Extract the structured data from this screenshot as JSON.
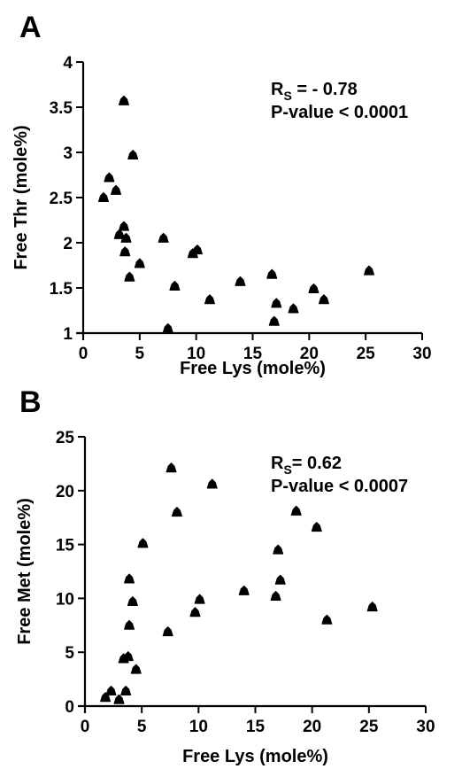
{
  "chart_data": [
    {
      "type": "scatter",
      "panel_label": "A",
      "xlabel": "Free Lys (mole%)",
      "ylabel": "Free Thr (mole%)",
      "xlim": [
        0,
        30
      ],
      "ylim": [
        1,
        4
      ],
      "xticks": [
        "0",
        "5",
        "10",
        "15",
        "20",
        "25",
        "30"
      ],
      "yticks": [
        "1",
        "1.5",
        "2",
        "2.5",
        "3",
        "3.5",
        "4"
      ],
      "annotation": {
        "rs_prefix": "R",
        "rs_sub": "S",
        "rs_value": " = - 0.78",
        "pvalue": "P-value < 0.0001"
      },
      "marker": "triangle",
      "color": "#000000",
      "grid": false,
      "points": [
        {
          "x": 1.8,
          "y": 2.5
        },
        {
          "x": 2.3,
          "y": 2.72
        },
        {
          "x": 2.9,
          "y": 2.58
        },
        {
          "x": 3.2,
          "y": 2.09
        },
        {
          "x": 3.6,
          "y": 3.57
        },
        {
          "x": 3.6,
          "y": 2.18
        },
        {
          "x": 3.7,
          "y": 1.9
        },
        {
          "x": 3.8,
          "y": 2.05
        },
        {
          "x": 4.1,
          "y": 1.62
        },
        {
          "x": 4.4,
          "y": 2.97
        },
        {
          "x": 5.0,
          "y": 1.77
        },
        {
          "x": 7.1,
          "y": 2.05
        },
        {
          "x": 7.5,
          "y": 1.05
        },
        {
          "x": 8.1,
          "y": 1.52
        },
        {
          "x": 9.7,
          "y": 1.88
        },
        {
          "x": 10.1,
          "y": 1.92
        },
        {
          "x": 11.2,
          "y": 1.37
        },
        {
          "x": 13.9,
          "y": 1.57
        },
        {
          "x": 16.7,
          "y": 1.65
        },
        {
          "x": 16.9,
          "y": 1.13
        },
        {
          "x": 17.1,
          "y": 1.33
        },
        {
          "x": 18.6,
          "y": 1.27
        },
        {
          "x": 20.4,
          "y": 1.49
        },
        {
          "x": 21.3,
          "y": 1.37
        },
        {
          "x": 25.3,
          "y": 1.69
        }
      ]
    },
    {
      "type": "scatter",
      "panel_label": "B",
      "xlabel": "Free Lys (mole%)",
      "ylabel": "Free Met (mole%)",
      "xlim": [
        0,
        30
      ],
      "ylim": [
        0,
        25
      ],
      "xticks": [
        "0",
        "5",
        "10",
        "15",
        "20",
        "25",
        "30"
      ],
      "yticks": [
        "0",
        "5",
        "10",
        "15",
        "20",
        "25"
      ],
      "annotation": {
        "rs_prefix": "R",
        "rs_sub": "S",
        "rs_value": "= 0.62",
        "pvalue": "P-value < 0.0007"
      },
      "marker": "triangle",
      "color": "#000000",
      "grid": false,
      "points": [
        {
          "x": 1.8,
          "y": 0.8
        },
        {
          "x": 2.3,
          "y": 1.4
        },
        {
          "x": 3.0,
          "y": 0.6
        },
        {
          "x": 3.4,
          "y": 4.4
        },
        {
          "x": 3.6,
          "y": 1.4
        },
        {
          "x": 3.8,
          "y": 4.6
        },
        {
          "x": 3.9,
          "y": 7.5
        },
        {
          "x": 3.9,
          "y": 11.8
        },
        {
          "x": 4.2,
          "y": 9.7
        },
        {
          "x": 4.5,
          "y": 3.4
        },
        {
          "x": 5.1,
          "y": 15.1
        },
        {
          "x": 7.3,
          "y": 6.9
        },
        {
          "x": 7.6,
          "y": 22.1
        },
        {
          "x": 8.1,
          "y": 18.0
        },
        {
          "x": 9.7,
          "y": 8.7
        },
        {
          "x": 10.1,
          "y": 9.9
        },
        {
          "x": 11.2,
          "y": 20.6
        },
        {
          "x": 14.0,
          "y": 10.7
        },
        {
          "x": 16.8,
          "y": 10.2
        },
        {
          "x": 17.0,
          "y": 14.5
        },
        {
          "x": 17.2,
          "y": 11.7
        },
        {
          "x": 18.6,
          "y": 18.1
        },
        {
          "x": 20.4,
          "y": 16.6
        },
        {
          "x": 21.3,
          "y": 8.0
        },
        {
          "x": 25.3,
          "y": 9.2
        }
      ]
    }
  ]
}
